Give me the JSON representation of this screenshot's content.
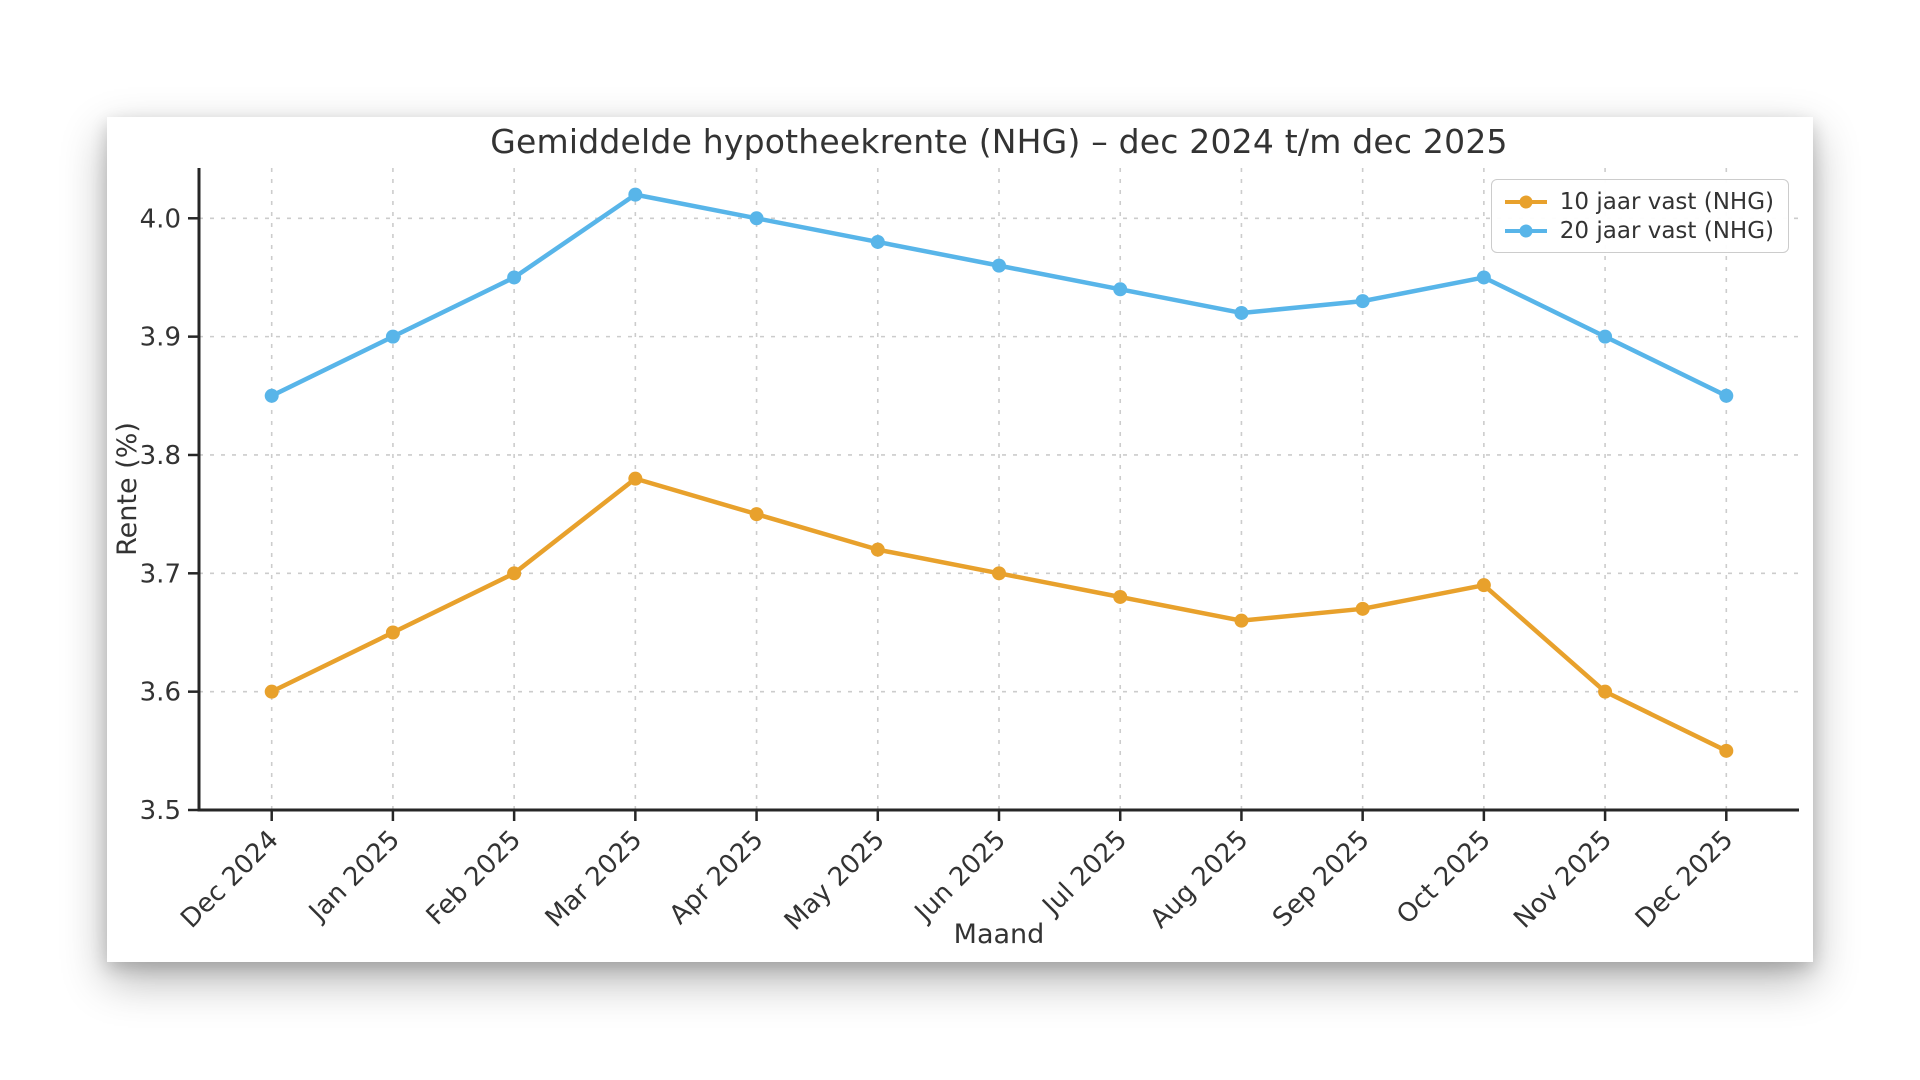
{
  "page": {
    "background": "#ffffff"
  },
  "chart_data": {
    "type": "line",
    "title": "Gemiddelde hypotheekrente (NHG) – dec 2024 t/m dec 2025",
    "xlabel": "Maand",
    "ylabel": "Rente (%)",
    "categories": [
      "Dec 2024",
      "Jan 2025",
      "Feb 2025",
      "Mar 2025",
      "Apr 2025",
      "May 2025",
      "Jun 2025",
      "Jul 2025",
      "Aug 2025",
      "Sep 2025",
      "Oct 2025",
      "Nov 2025",
      "Dec 2025"
    ],
    "series": [
      {
        "name": "10 jaar vast (NHG)",
        "color": "#E8A12C",
        "values": [
          3.6,
          3.65,
          3.7,
          3.78,
          3.75,
          3.72,
          3.7,
          3.68,
          3.66,
          3.67,
          3.69,
          3.6,
          3.55
        ]
      },
      {
        "name": "20 jaar vast (NHG)",
        "color": "#58B5E9",
        "values": [
          3.85,
          3.9,
          3.95,
          4.02,
          4.0,
          3.98,
          3.96,
          3.94,
          3.92,
          3.93,
          3.95,
          3.9,
          3.85
        ]
      }
    ],
    "yticks": [
      3.5,
      3.6,
      3.7,
      3.8,
      3.9,
      4.0
    ],
    "ytick_labels": [
      "3.5",
      "3.6",
      "3.7",
      "3.8",
      "3.9",
      "4.0"
    ],
    "ylim": [
      3.5,
      4.0425
    ],
    "grid": true,
    "legend_position": "upper right",
    "colors": {
      "grid": "#cccccc",
      "spine": "#262626",
      "text": "#333333"
    }
  }
}
